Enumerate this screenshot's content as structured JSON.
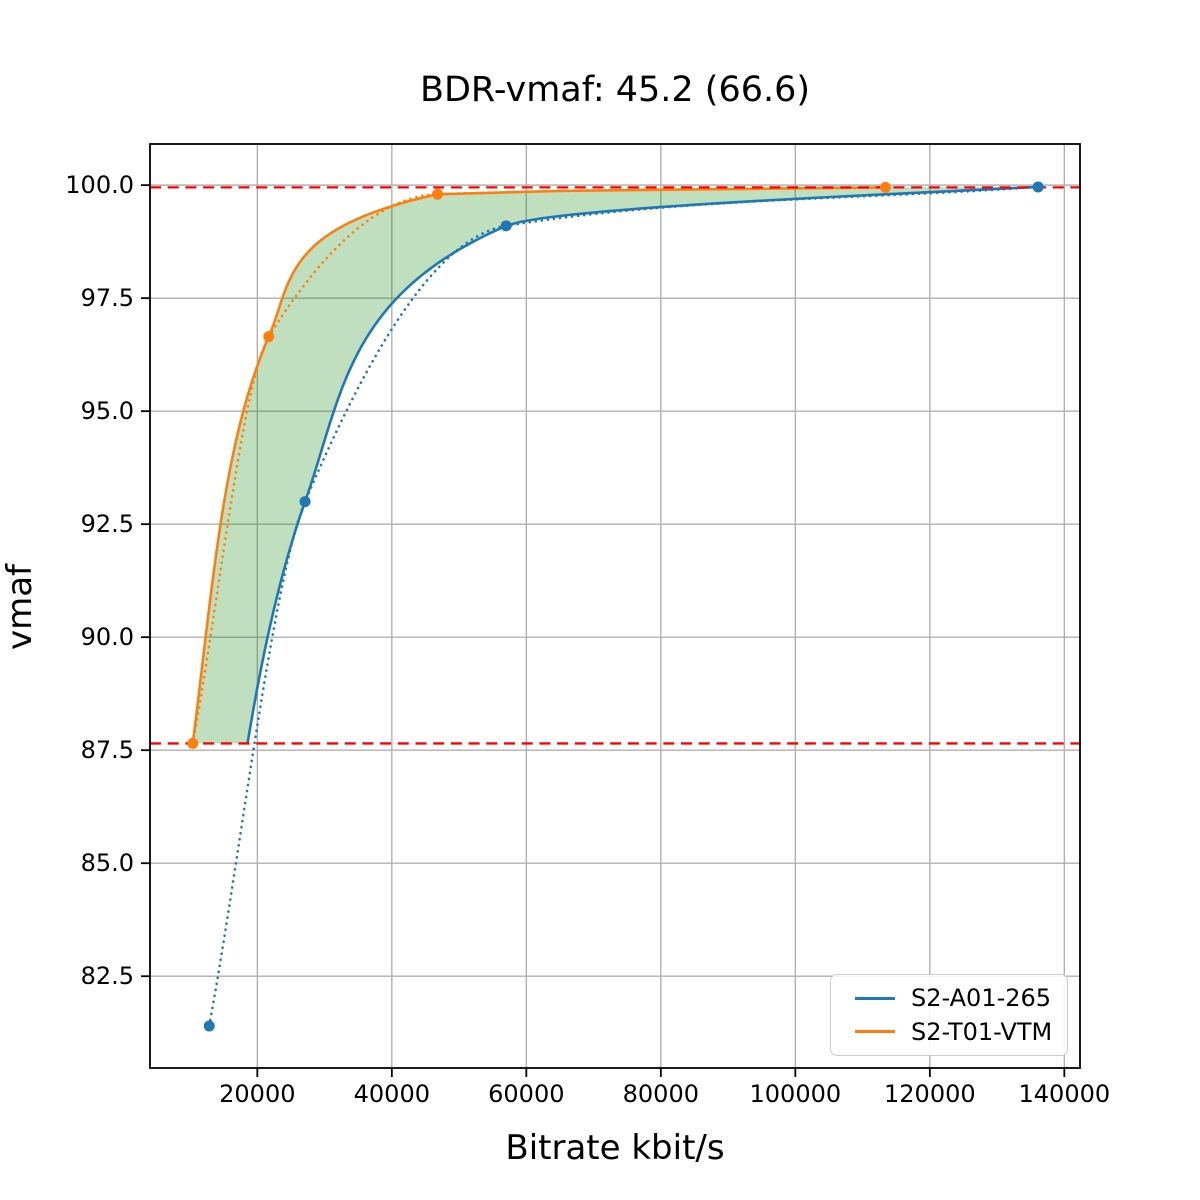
{
  "chart_data": {
    "type": "line",
    "title": "BDR-vmaf: 45.2 (66.6)",
    "xlabel": "Bitrate kbit/s",
    "ylabel": "vmaf",
    "xlim": [
      4040,
      142330
    ],
    "ylim": [
      80.47,
      100.91
    ],
    "grid": true,
    "grid_color": "#b0b0b0",
    "legend_position": "lower right",
    "xticks": [
      {
        "value": 20000,
        "label": "20000"
      },
      {
        "value": 40000,
        "label": "40000"
      },
      {
        "value": 60000,
        "label": "60000"
      },
      {
        "value": 80000,
        "label": "80000"
      },
      {
        "value": 100000,
        "label": "100000"
      },
      {
        "value": 120000,
        "label": "120000"
      },
      {
        "value": 140000,
        "label": "140000"
      }
    ],
    "yticks": [
      {
        "value": 100.0,
        "label": "100.0"
      },
      {
        "value": 97.5,
        "label": "97.5"
      },
      {
        "value": 95.0,
        "label": "95.0"
      },
      {
        "value": 92.5,
        "label": "92.5"
      },
      {
        "value": 90.0,
        "label": "90.0"
      },
      {
        "value": 87.5,
        "label": "87.5"
      },
      {
        "value": 85.0,
        "label": "85.0"
      },
      {
        "value": 82.5,
        "label": "82.5"
      }
    ],
    "series": [
      {
        "name": "S2-A01-265",
        "color": "#1f77b4",
        "points": [
          [
            12850,
            81.4
          ],
          [
            27100,
            93.0
          ],
          [
            57000,
            99.1
          ],
          [
            136100,
            99.96
          ]
        ]
      },
      {
        "name": "S2-T01-VTM",
        "color": "#ff7f0e",
        "points": [
          [
            10400,
            87.65
          ],
          [
            21700,
            96.65
          ],
          [
            46800,
            99.8
          ],
          [
            113400,
            99.95
          ]
        ]
      }
    ],
    "integration_band": {
      "low": 87.65,
      "high": 99.95,
      "line_color": "#ff0000",
      "line_style": "dashed",
      "fill_color": "#008000",
      "fill_opacity": 0.25
    }
  }
}
